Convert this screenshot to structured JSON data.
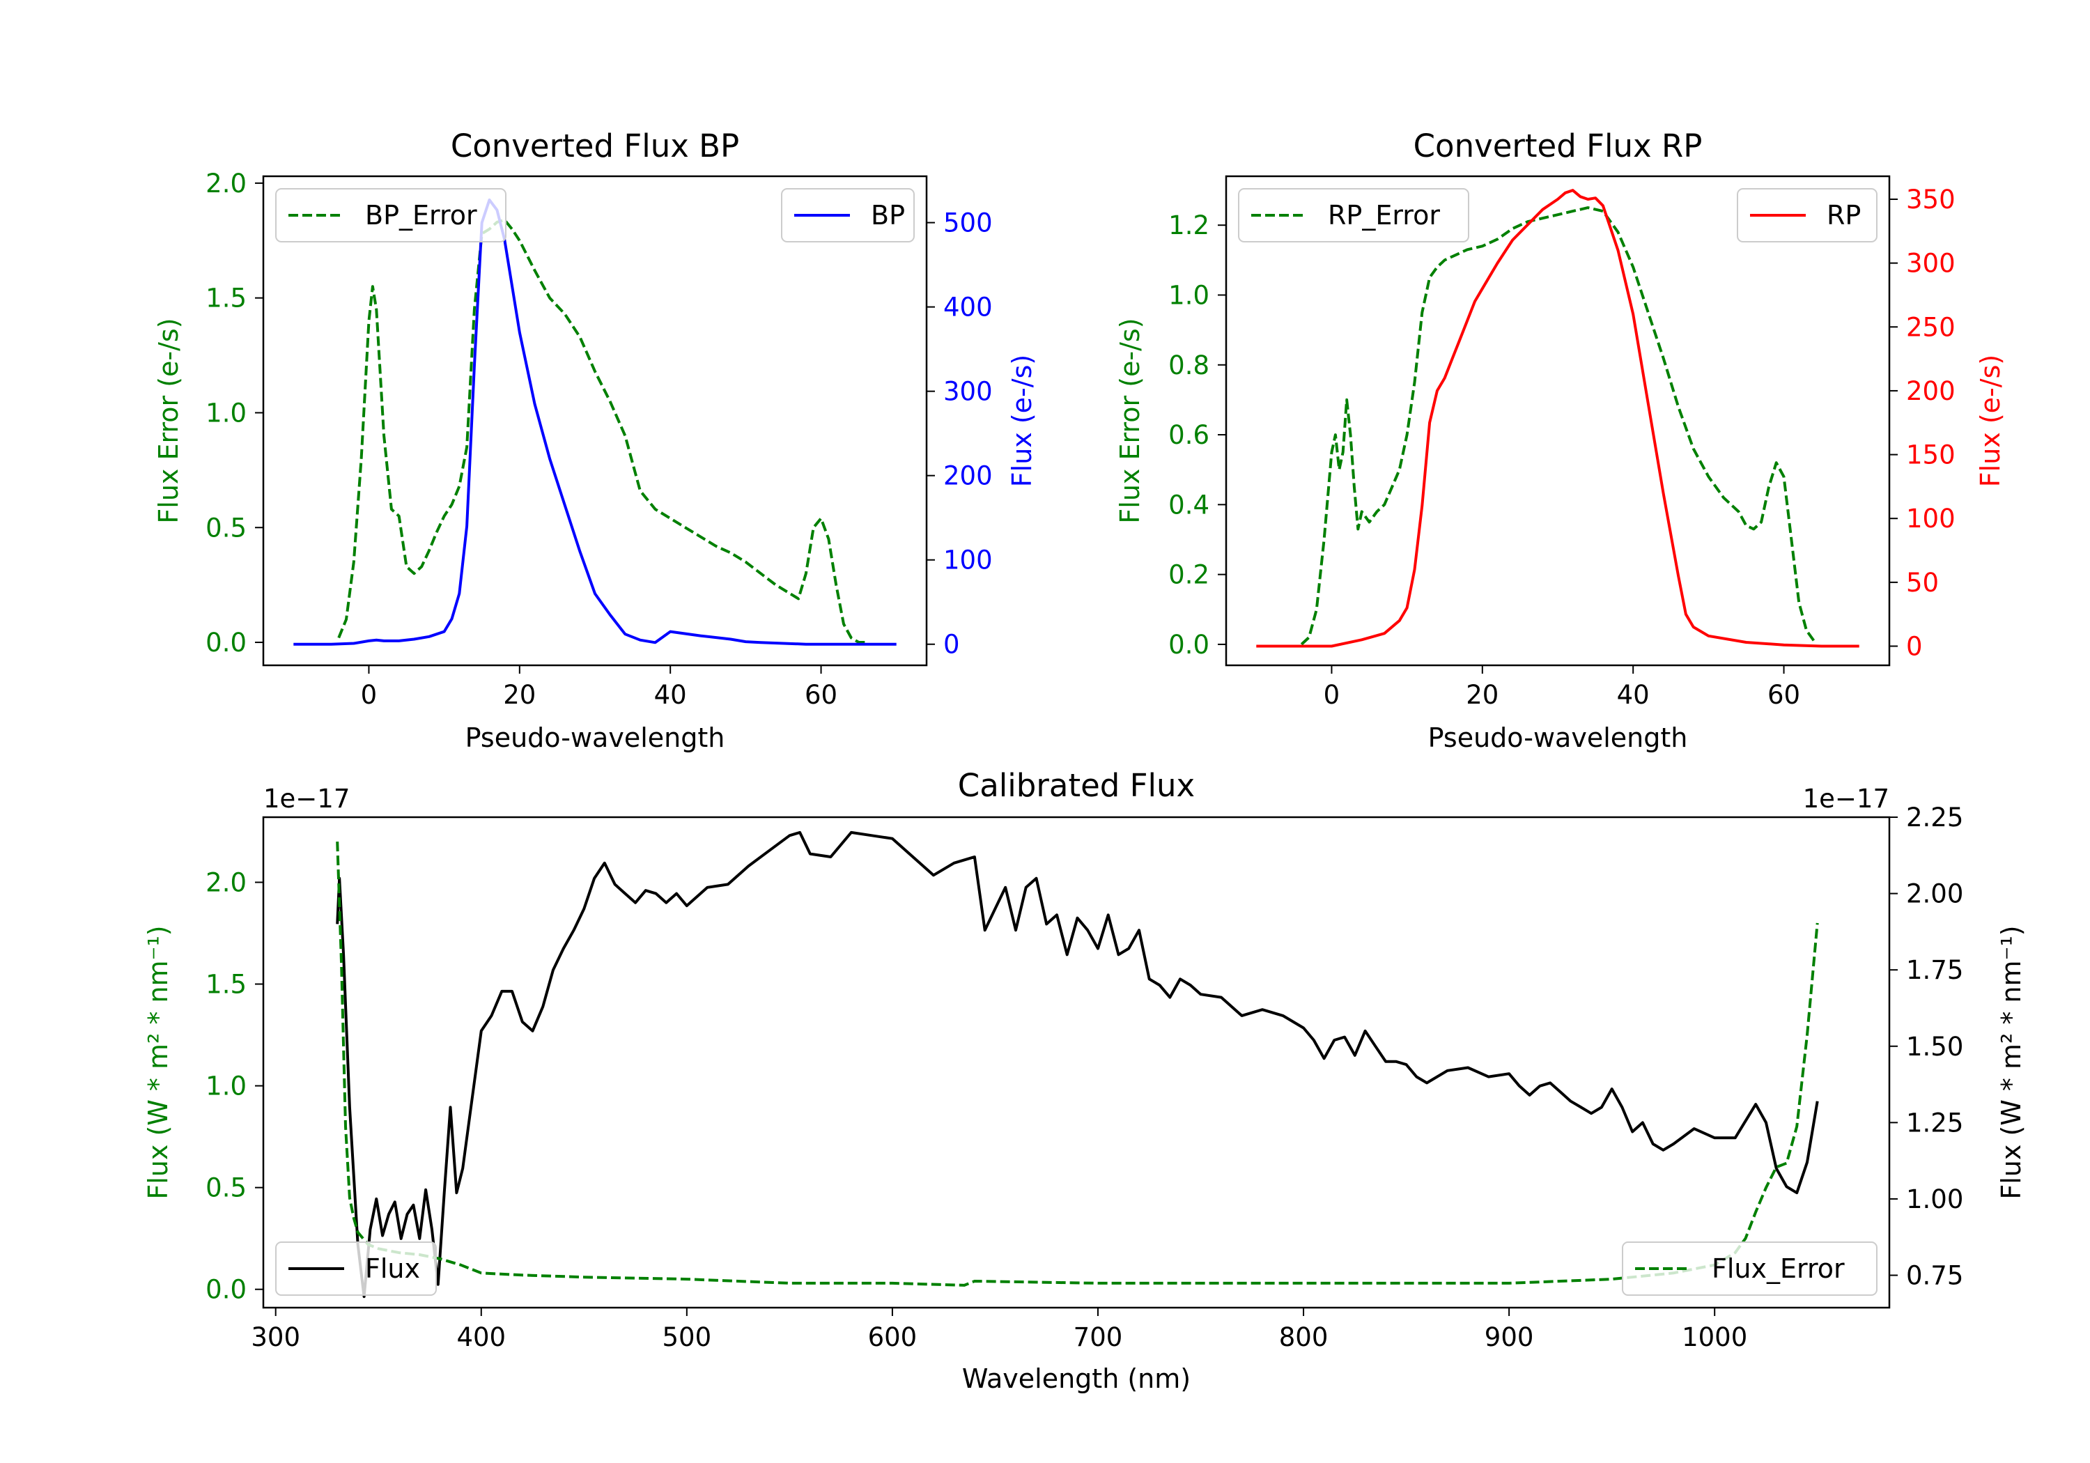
{
  "chart_data": [
    {
      "type": "line",
      "title": "Converted Flux BP",
      "xlabel": "Pseudo-wavelength",
      "xlim": [
        -14,
        74
      ],
      "xticks": [
        0,
        20,
        40,
        60
      ],
      "y_left": {
        "label": "Flux Error (e-/s)",
        "color": "#008000",
        "lim": [
          -0.1,
          2.03
        ],
        "ticks": [
          0.0,
          0.5,
          1.0,
          1.5,
          2.0
        ],
        "tick_labels": [
          "0.0",
          "0.5",
          "1.0",
          "1.5",
          "2.0"
        ]
      },
      "y_right": {
        "label": "Flux (e-/s)",
        "color": "#0000ff",
        "lim": [
          -25,
          555
        ],
        "ticks": [
          0,
          100,
          200,
          300,
          400,
          500
        ],
        "tick_labels": [
          "0",
          "100",
          "200",
          "300",
          "400",
          "500"
        ]
      },
      "series": [
        {
          "name": "BP_Error",
          "axis": "left",
          "color": "#008000",
          "style": "dashed",
          "x": [
            -4,
            -3,
            -2,
            -1,
            0,
            0.5,
            1,
            2,
            3,
            4,
            5,
            6,
            7,
            8,
            9,
            10,
            11,
            12,
            13,
            14,
            15,
            16,
            17,
            18,
            19,
            20,
            22,
            24,
            26,
            28,
            30,
            32,
            34,
            36,
            38,
            40,
            42,
            44,
            46,
            48,
            50,
            52,
            54,
            56,
            57,
            58,
            59,
            60,
            61,
            62,
            63,
            64,
            65,
            66
          ],
          "y": [
            0.02,
            0.1,
            0.35,
            0.8,
            1.4,
            1.55,
            1.45,
            0.9,
            0.58,
            0.55,
            0.33,
            0.3,
            0.33,
            0.4,
            0.48,
            0.55,
            0.6,
            0.68,
            0.85,
            1.45,
            1.78,
            1.8,
            1.83,
            1.84,
            1.8,
            1.75,
            1.62,
            1.5,
            1.43,
            1.33,
            1.18,
            1.05,
            0.9,
            0.66,
            0.58,
            0.54,
            0.5,
            0.46,
            0.42,
            0.39,
            0.35,
            0.3,
            0.25,
            0.21,
            0.19,
            0.3,
            0.5,
            0.54,
            0.45,
            0.25,
            0.08,
            0.02,
            0.0,
            0.0
          ]
        },
        {
          "name": "BP",
          "axis": "right",
          "color": "#0000ff",
          "style": "solid",
          "x": [
            -10,
            -5,
            -2,
            0,
            1,
            2,
            4,
            6,
            8,
            10,
            11,
            12,
            13,
            14,
            15,
            16,
            17,
            18,
            19,
            20,
            22,
            24,
            26,
            28,
            30,
            32,
            34,
            36,
            38,
            40,
            44,
            48,
            50,
            52,
            55,
            58,
            60,
            65,
            70
          ],
          "y": [
            0,
            0,
            1,
            4,
            5,
            4,
            4,
            6,
            9,
            15,
            30,
            60,
            140,
            330,
            500,
            527,
            515,
            480,
            425,
            370,
            285,
            220,
            165,
            110,
            60,
            35,
            12,
            5,
            2,
            15,
            10,
            6,
            3,
            2,
            1,
            0,
            0,
            0,
            0
          ]
        }
      ],
      "legend": [
        {
          "label": "BP_Error",
          "position": "upper-left"
        },
        {
          "label": "BP",
          "position": "upper-right"
        }
      ]
    },
    {
      "type": "line",
      "title": "Converted Flux RP",
      "xlabel": "Pseudo-wavelength",
      "xlim": [
        -14,
        74
      ],
      "xticks": [
        0,
        20,
        40,
        60
      ],
      "y_left": {
        "label": "Flux Error (e-/s)",
        "color": "#008000",
        "lim": [
          -0.06,
          1.34
        ],
        "ticks": [
          0.0,
          0.2,
          0.4,
          0.6,
          0.8,
          1.0,
          1.2
        ],
        "tick_labels": [
          "0.0",
          "0.2",
          "0.4",
          "0.6",
          "0.8",
          "1.0",
          "1.2"
        ]
      },
      "y_right": {
        "label": "Flux (e-/s)",
        "color": "#ff0000",
        "lim": [
          -15,
          368
        ],
        "ticks": [
          0,
          50,
          100,
          150,
          200,
          250,
          300,
          350
        ],
        "tick_labels": [
          "0",
          "50",
          "100",
          "150",
          "200",
          "250",
          "300",
          "350"
        ]
      },
      "series": [
        {
          "name": "RP_Error",
          "axis": "left",
          "color": "#008000",
          "style": "dashed",
          "x": [
            -4,
            -3,
            -2,
            -1,
            0,
            0.5,
            1,
            1.5,
            2,
            2.5,
            3,
            3.5,
            4,
            5,
            6,
            7,
            8,
            9,
            10,
            11,
            12,
            13,
            14,
            15,
            16,
            18,
            20,
            22,
            24,
            26,
            28,
            30,
            32,
            34,
            36,
            38,
            40,
            42,
            44,
            46,
            48,
            50,
            52,
            54,
            55,
            56,
            57,
            58,
            59,
            60,
            61,
            62,
            63,
            64
          ],
          "y": [
            0.0,
            0.02,
            0.1,
            0.3,
            0.55,
            0.6,
            0.5,
            0.55,
            0.7,
            0.6,
            0.45,
            0.33,
            0.38,
            0.35,
            0.38,
            0.4,
            0.45,
            0.5,
            0.6,
            0.75,
            0.95,
            1.05,
            1.08,
            1.1,
            1.11,
            1.13,
            1.14,
            1.16,
            1.19,
            1.21,
            1.22,
            1.23,
            1.24,
            1.25,
            1.24,
            1.18,
            1.08,
            0.95,
            0.82,
            0.68,
            0.56,
            0.48,
            0.42,
            0.38,
            0.34,
            0.33,
            0.35,
            0.45,
            0.52,
            0.48,
            0.3,
            0.12,
            0.04,
            0.01
          ]
        },
        {
          "name": "RP",
          "axis": "right",
          "color": "#ff0000",
          "style": "solid",
          "x": [
            -10,
            -5,
            0,
            4,
            7,
            9,
            10,
            11,
            12,
            13,
            14,
            15,
            16,
            17,
            18,
            19,
            20,
            22,
            24,
            26,
            28,
            30,
            31,
            32,
            33,
            34,
            35,
            36,
            38,
            40,
            42,
            44,
            46,
            47,
            48,
            50,
            55,
            60,
            65,
            70
          ],
          "y": [
            0,
            0,
            0,
            5,
            10,
            20,
            30,
            60,
            110,
            175,
            200,
            210,
            225,
            240,
            255,
            270,
            280,
            300,
            318,
            330,
            342,
            350,
            355,
            357,
            352,
            350,
            351,
            345,
            310,
            260,
            190,
            120,
            55,
            25,
            15,
            8,
            3,
            1,
            0,
            0
          ]
        }
      ],
      "legend": [
        {
          "label": "RP_Error",
          "position": "upper-left"
        },
        {
          "label": "RP",
          "position": "upper-right"
        }
      ]
    },
    {
      "type": "line",
      "title": "Calibrated Flux",
      "xlabel": "Wavelength (nm)",
      "xlim": [
        294,
        1085
      ],
      "xticks": [
        300,
        400,
        500,
        600,
        700,
        800,
        900,
        1000
      ],
      "y_left": {
        "label": "Flux (W * m² * nm⁻¹)",
        "color": "#008000",
        "lim": [
          -0.09,
          2.32
        ],
        "ticks": [
          0.0,
          0.5,
          1.0,
          1.5,
          2.0
        ],
        "tick_labels": [
          "0.0",
          "0.5",
          "1.0",
          "1.5",
          "2.0"
        ],
        "offset_text": "1e−17"
      },
      "y_right": {
        "label": "Flux (W * m² * nm⁻¹)",
        "color": "#000000",
        "lim": [
          0.644,
          2.25
        ],
        "ticks": [
          0.75,
          1.0,
          1.25,
          1.5,
          1.75,
          2.0,
          2.25
        ],
        "tick_labels": [
          "0.75",
          "1.00",
          "1.25",
          "1.50",
          "1.75",
          "2.00",
          "2.25"
        ],
        "offset_text": "1e−17"
      },
      "series": [
        {
          "name": "Flux",
          "axis": "right",
          "color": "#000000",
          "style": "solid",
          "x": [
            330,
            331,
            333,
            336,
            340,
            343,
            346,
            349,
            352,
            355,
            358,
            361,
            364,
            367,
            370,
            373,
            376,
            379,
            382,
            385,
            388,
            391,
            395,
            400,
            405,
            410,
            415,
            420,
            425,
            430,
            435,
            440,
            445,
            450,
            455,
            460,
            465,
            470,
            475,
            480,
            485,
            490,
            495,
            500,
            510,
            520,
            530,
            540,
            550,
            555,
            560,
            570,
            580,
            590,
            600,
            610,
            620,
            630,
            640,
            645,
            650,
            655,
            660,
            665,
            670,
            675,
            680,
            685,
            690,
            695,
            700,
            705,
            710,
            715,
            720,
            725,
            730,
            735,
            740,
            745,
            750,
            760,
            770,
            780,
            790,
            800,
            805,
            810,
            815,
            820,
            825,
            830,
            835,
            840,
            845,
            850,
            855,
            860,
            870,
            880,
            890,
            900,
            905,
            910,
            915,
            920,
            925,
            930,
            935,
            940,
            945,
            950,
            955,
            960,
            965,
            970,
            975,
            980,
            990,
            1000,
            1010,
            1020,
            1025,
            1030,
            1035,
            1040,
            1045,
            1050
          ],
          "y": [
            1.9,
            2.05,
            1.8,
            1.3,
            0.85,
            0.68,
            0.9,
            1.0,
            0.88,
            0.95,
            0.99,
            0.87,
            0.95,
            0.98,
            0.87,
            1.03,
            0.9,
            0.72,
            1.02,
            1.3,
            1.02,
            1.1,
            1.3,
            1.55,
            1.6,
            1.68,
            1.68,
            1.58,
            1.55,
            1.63,
            1.75,
            1.82,
            1.88,
            1.95,
            2.05,
            2.1,
            2.03,
            2.0,
            1.97,
            2.01,
            2.0,
            1.97,
            2.0,
            1.96,
            2.02,
            2.03,
            2.09,
            2.14,
            2.19,
            2.2,
            2.13,
            2.12,
            2.2,
            2.19,
            2.18,
            2.12,
            2.06,
            2.1,
            2.12,
            1.88,
            1.95,
            2.02,
            1.88,
            2.02,
            2.05,
            1.9,
            1.93,
            1.8,
            1.92,
            1.88,
            1.82,
            1.93,
            1.8,
            1.82,
            1.88,
            1.72,
            1.7,
            1.66,
            1.72,
            1.7,
            1.67,
            1.66,
            1.6,
            1.62,
            1.6,
            1.56,
            1.52,
            1.46,
            1.52,
            1.53,
            1.47,
            1.55,
            1.5,
            1.45,
            1.45,
            1.44,
            1.4,
            1.38,
            1.42,
            1.43,
            1.4,
            1.41,
            1.37,
            1.34,
            1.37,
            1.38,
            1.35,
            1.32,
            1.3,
            1.28,
            1.3,
            1.36,
            1.3,
            1.22,
            1.25,
            1.18,
            1.16,
            1.18,
            1.23,
            1.2,
            1.2,
            1.31,
            1.25,
            1.1,
            1.04,
            1.02,
            1.12,
            1.32
          ]
        },
        {
          "name": "Flux_Error",
          "axis": "left",
          "color": "#008000",
          "style": "dashed",
          "x": [
            330,
            332,
            334,
            336,
            338,
            340,
            345,
            350,
            360,
            370,
            380,
            390,
            400,
            420,
            450,
            500,
            550,
            600,
            635,
            640,
            700,
            800,
            900,
            950,
            980,
            1000,
            1010,
            1015,
            1020,
            1025,
            1030,
            1035,
            1040,
            1045,
            1050
          ],
          "y": [
            2.2,
            1.6,
            0.8,
            0.45,
            0.35,
            0.28,
            0.22,
            0.2,
            0.18,
            0.17,
            0.15,
            0.12,
            0.08,
            0.07,
            0.06,
            0.05,
            0.03,
            0.03,
            0.02,
            0.04,
            0.03,
            0.03,
            0.03,
            0.05,
            0.08,
            0.12,
            0.18,
            0.25,
            0.38,
            0.5,
            0.6,
            0.62,
            0.8,
            1.25,
            1.8
          ]
        }
      ],
      "legend": [
        {
          "label": "Flux",
          "position": "lower-left"
        },
        {
          "label": "Flux_Error",
          "position": "lower-right"
        }
      ]
    }
  ]
}
